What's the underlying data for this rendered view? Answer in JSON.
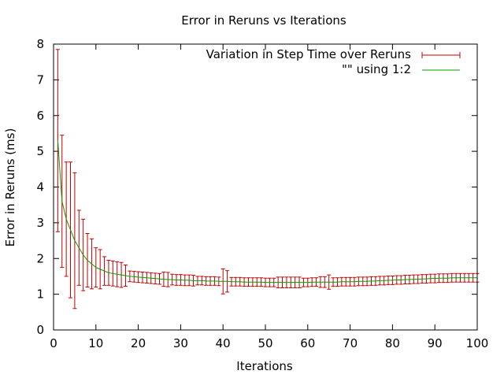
{
  "chart_data": {
    "type": "line",
    "title": "Error in Reruns vs Iterations",
    "xlabel": "Iterations",
    "ylabel": "Error in Reruns (ms)",
    "xlim": [
      0,
      100
    ],
    "ylim": [
      0,
      8
    ],
    "xticks": [
      "0",
      "10",
      "20",
      "30",
      "40",
      "50",
      "60",
      "70",
      "80",
      "90",
      "100"
    ],
    "yticks": [
      "0",
      "1",
      "2",
      "3",
      "4",
      "5",
      "6",
      "7",
      "8"
    ],
    "grid": false,
    "legend_position": "top-right",
    "series": [
      {
        "name": "Variation in Step Time over Reruns",
        "style": "errorbars",
        "color": "#c00000",
        "x": [
          1,
          2,
          3,
          4,
          5,
          6,
          7,
          8,
          9,
          10,
          11,
          12,
          13,
          14,
          15,
          16,
          17,
          18,
          19,
          20,
          21,
          22,
          23,
          24,
          25,
          26,
          27,
          28,
          29,
          30,
          31,
          32,
          33,
          34,
          35,
          36,
          37,
          38,
          39,
          40,
          41,
          42,
          43,
          44,
          45,
          46,
          47,
          48,
          49,
          50,
          51,
          52,
          53,
          54,
          55,
          56,
          57,
          58,
          59,
          60,
          61,
          62,
          63,
          64,
          65,
          66,
          67,
          68,
          69,
          70,
          71,
          72,
          73,
          74,
          75,
          76,
          77,
          78,
          79,
          80,
          81,
          82,
          83,
          84,
          85,
          86,
          87,
          88,
          89,
          90,
          91,
          92,
          93,
          94,
          95,
          96,
          97,
          98,
          99,
          100
        ],
        "y": [
          5.3,
          3.6,
          3.1,
          2.8,
          2.5,
          2.3,
          2.1,
          1.95,
          1.85,
          1.75,
          1.7,
          1.65,
          1.6,
          1.58,
          1.56,
          1.54,
          1.52,
          1.5,
          1.49,
          1.48,
          1.47,
          1.46,
          1.45,
          1.44,
          1.43,
          1.42,
          1.41,
          1.41,
          1.4,
          1.4,
          1.39,
          1.39,
          1.38,
          1.38,
          1.38,
          1.37,
          1.37,
          1.37,
          1.36,
          1.36,
          1.36,
          1.35,
          1.35,
          1.35,
          1.34,
          1.34,
          1.34,
          1.34,
          1.34,
          1.33,
          1.33,
          1.33,
          1.33,
          1.33,
          1.33,
          1.33,
          1.33,
          1.33,
          1.33,
          1.33,
          1.34,
          1.34,
          1.34,
          1.34,
          1.34,
          1.34,
          1.34,
          1.35,
          1.35,
          1.35,
          1.35,
          1.36,
          1.36,
          1.36,
          1.37,
          1.37,
          1.38,
          1.38,
          1.39,
          1.39,
          1.4,
          1.4,
          1.41,
          1.41,
          1.42,
          1.42,
          1.43,
          1.43,
          1.44,
          1.44,
          1.45,
          1.45,
          1.45,
          1.46,
          1.46,
          1.46,
          1.46,
          1.46,
          1.46,
          1.46
        ],
        "err": [
          2.55,
          1.85,
          1.6,
          1.9,
          1.9,
          1.05,
          1.0,
          0.75,
          0.7,
          0.55,
          0.55,
          0.4,
          0.35,
          0.35,
          0.35,
          0.35,
          0.3,
          0.15,
          0.15,
          0.15,
          0.15,
          0.15,
          0.15,
          0.15,
          0.15,
          0.2,
          0.2,
          0.15,
          0.15,
          0.15,
          0.15,
          0.15,
          0.15,
          0.12,
          0.12,
          0.12,
          0.12,
          0.12,
          0.12,
          0.35,
          0.3,
          0.12,
          0.12,
          0.12,
          0.12,
          0.12,
          0.12,
          0.12,
          0.12,
          0.12,
          0.12,
          0.12,
          0.15,
          0.15,
          0.15,
          0.15,
          0.15,
          0.15,
          0.12,
          0.12,
          0.12,
          0.12,
          0.15,
          0.15,
          0.2,
          0.12,
          0.12,
          0.12,
          0.12,
          0.12,
          0.12,
          0.12,
          0.12,
          0.12,
          0.12,
          0.12,
          0.12,
          0.12,
          0.12,
          0.12,
          0.12,
          0.12,
          0.12,
          0.12,
          0.12,
          0.12,
          0.12,
          0.12,
          0.12,
          0.12,
          0.12,
          0.12,
          0.12,
          0.12,
          0.12,
          0.12,
          0.12,
          0.12,
          0.12,
          0.12
        ]
      },
      {
        "name": "\"\" using 1:2",
        "style": "line",
        "color": "#00a000"
      }
    ]
  }
}
